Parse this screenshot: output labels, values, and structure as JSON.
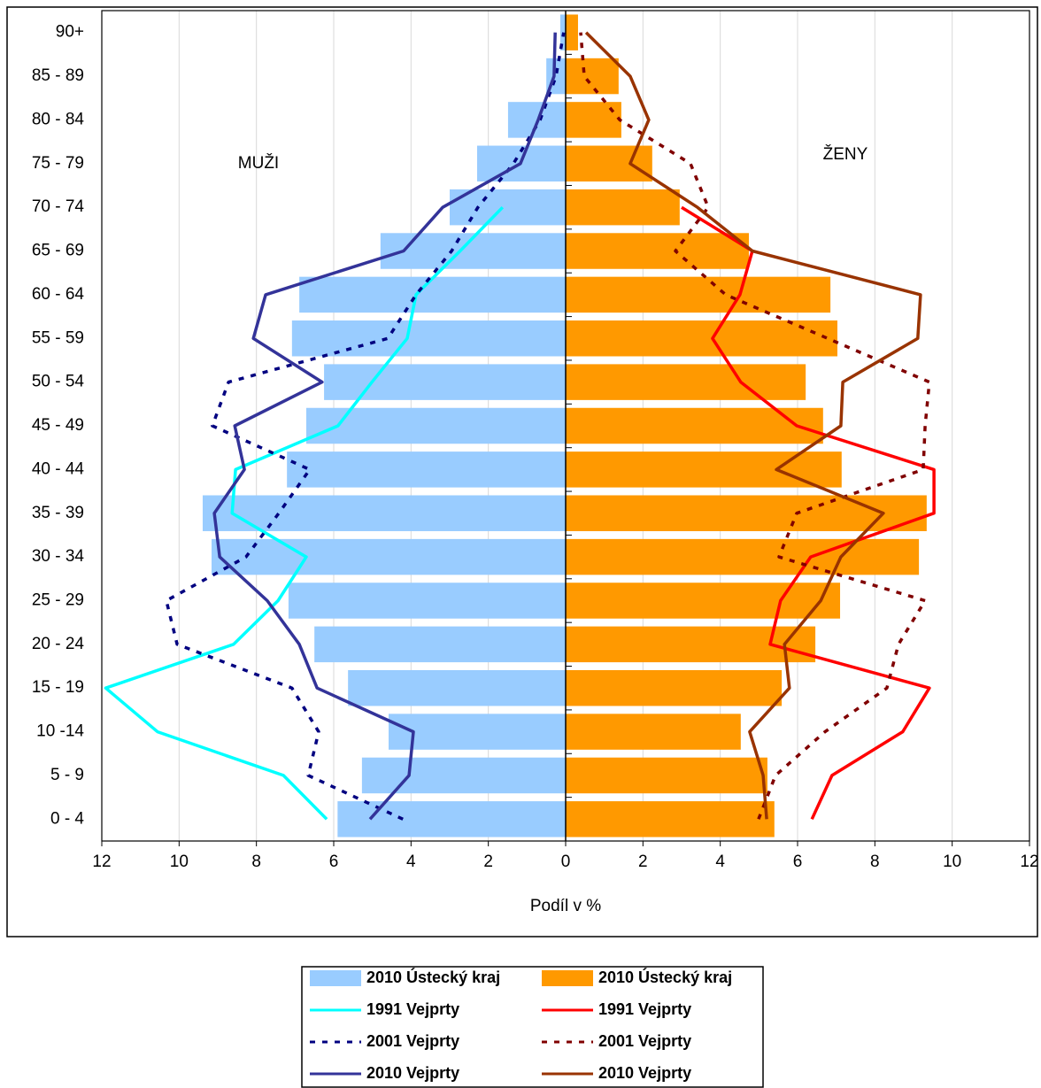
{
  "chart_data": {
    "type": "bar",
    "orientation": "horizontal",
    "x_label": "Podíl v %",
    "annotations": [
      "MUŽI",
      "ŽENY"
    ],
    "categories": [
      "0 - 4",
      "5 - 9",
      "10 -14",
      "15 - 19",
      "20 - 24",
      "25 - 29",
      "30 - 34",
      "35 - 39",
      "40 - 44",
      "45 - 49",
      "50 - 54",
      "55 - 59",
      "60 - 64",
      "65 - 69",
      "70 - 74",
      "75 - 79",
      "80 - 84",
      "85 - 89",
      "90+"
    ],
    "xlim": [
      -12,
      12
    ],
    "xticks": [
      {
        "value": -12,
        "label": "12"
      },
      {
        "value": -10,
        "label": "10"
      },
      {
        "value": -8,
        "label": "8"
      },
      {
        "value": -6,
        "label": "6"
      },
      {
        "value": -4,
        "label": "4"
      },
      {
        "value": -2,
        "label": "2"
      },
      0,
      2,
      4,
      6,
      8,
      10,
      12
    ],
    "grid": true,
    "legend": "bottom",
    "series": [
      {
        "name": "2010 Ústecký kraj",
        "kind": "bar",
        "color": "#99ccff",
        "values": [
          -5.9,
          -5.27,
          -4.58,
          -5.63,
          -6.5,
          -7.17,
          -9.16,
          -9.39,
          -7.21,
          -6.71,
          -6.25,
          -7.08,
          -6.89,
          -4.79,
          -3.0,
          -2.29,
          -1.49,
          -0.5,
          -0.14
        ]
      },
      {
        "name": "2010 Ústecký kraj",
        "kind": "bar",
        "color": "#ff9900",
        "values": [
          5.4,
          5.22,
          4.53,
          5.59,
          6.46,
          7.1,
          9.14,
          9.34,
          7.14,
          6.66,
          6.21,
          7.03,
          6.85,
          4.74,
          2.95,
          2.24,
          1.44,
          1.37,
          0.32
        ]
      },
      {
        "name": "1991 Vejprty",
        "kind": "line",
        "color": "#00ffff",
        "dash": "solid",
        "values": [
          -6.18,
          -7.3,
          -10.56,
          -11.9,
          -8.59,
          -7.44,
          -6.71,
          -8.63,
          -8.54,
          -5.89,
          -5.01,
          -4.1,
          -3.87,
          -2.73,
          -1.63,
          null,
          null,
          null,
          null
        ]
      },
      {
        "name": "1991 Vejprty",
        "kind": "line",
        "color": "#ff0000",
        "dash": "solid",
        "values": [
          6.37,
          6.89,
          8.72,
          9.41,
          5.29,
          5.56,
          6.34,
          9.53,
          9.53,
          5.98,
          4.53,
          3.8,
          4.51,
          4.83,
          3.0,
          null,
          null,
          null,
          null
        ]
      },
      {
        "name": "2001 Vejprty",
        "kind": "line",
        "color": "#000080",
        "dash": "dashed",
        "values": [
          -4.21,
          -6.66,
          -6.39,
          -7.08,
          -10.05,
          -10.33,
          -8.27,
          -7.42,
          -6.62,
          -9.14,
          -8.72,
          -4.6,
          -3.87,
          -2.95,
          -2.27,
          -1.35,
          -0.66,
          -0.25,
          -0.05
        ]
      },
      {
        "name": "2001 Vejprty",
        "kind": "line",
        "color": "#800000",
        "dash": "dashed",
        "values": [
          4.99,
          5.43,
          6.71,
          8.31,
          8.61,
          9.3,
          5.52,
          5.98,
          9.25,
          9.3,
          9.41,
          6.78,
          4.14,
          2.84,
          3.69,
          3.23,
          1.4,
          0.48,
          0.39
        ]
      },
      {
        "name": "2010 Vejprty",
        "kind": "line",
        "color": "#333399",
        "dash": "solid",
        "values": [
          -5.06,
          -4.05,
          -3.94,
          -6.43,
          -6.89,
          -7.72,
          -8.95,
          -9.09,
          -8.31,
          -8.56,
          -6.3,
          -8.08,
          -7.76,
          -4.19,
          -3.18,
          -1.17,
          -0.71,
          -0.3,
          -0.27
        ]
      },
      {
        "name": "2010 Vejprty",
        "kind": "line",
        "color": "#993300",
        "dash": "solid",
        "values": [
          5.2,
          5.11,
          4.76,
          5.79,
          5.66,
          6.6,
          7.12,
          8.22,
          5.45,
          7.12,
          7.17,
          9.11,
          9.18,
          4.83,
          3.41,
          1.67,
          2.15,
          1.67,
          0.53
        ]
      }
    ]
  }
}
